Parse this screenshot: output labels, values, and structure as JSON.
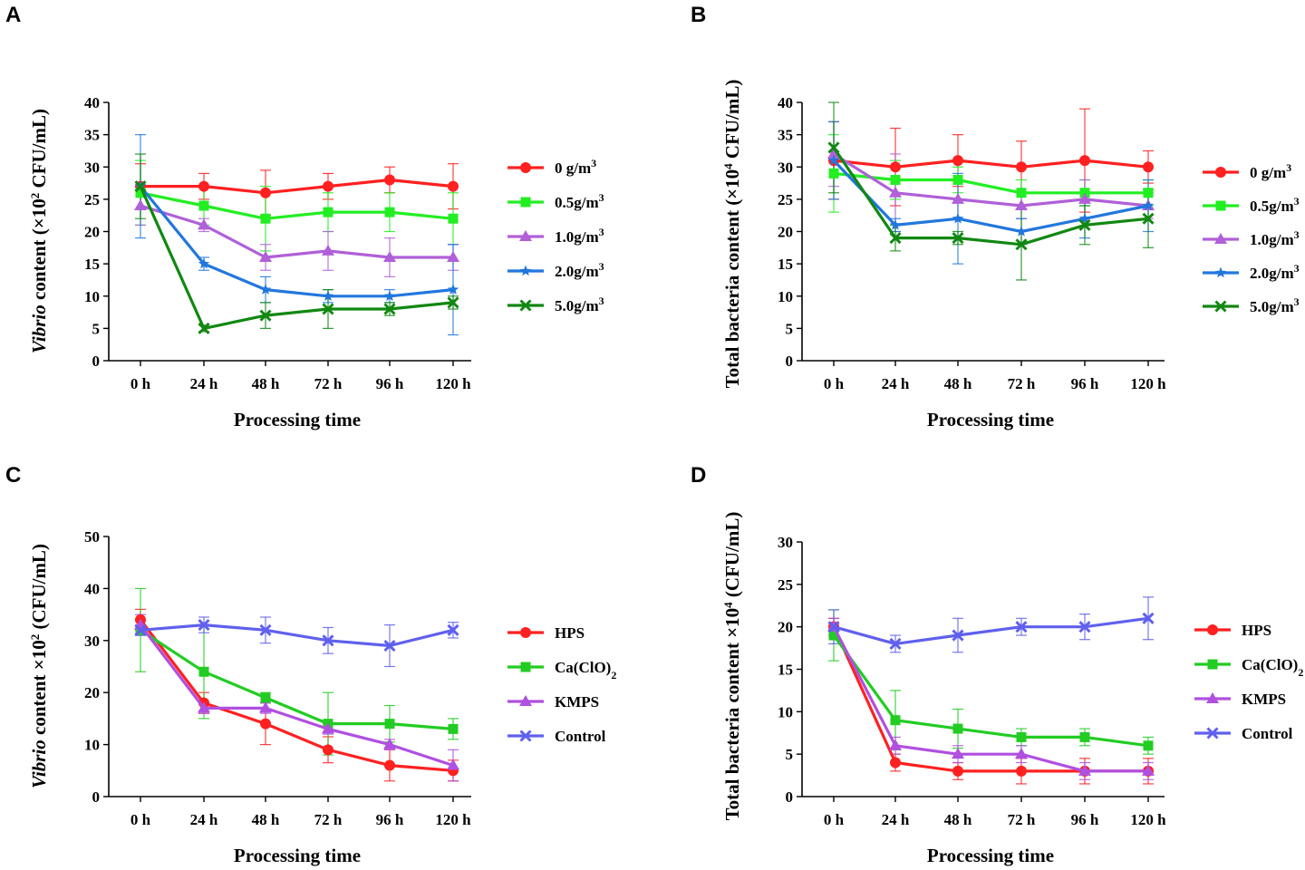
{
  "chart_data": [
    {
      "panel": "A",
      "type": "line",
      "categories": [
        "0 h",
        "24 h",
        "48 h",
        "72 h",
        "96 h",
        "120 h"
      ],
      "xlabel": "Processing time",
      "ylabel_parts": [
        {
          "text": "Vibrio",
          "italic": true
        },
        {
          "text": " content (×10"
        },
        {
          "text": "2",
          "sup": true
        },
        {
          "text": " CFU/mL)"
        }
      ],
      "ylim": [
        0,
        40
      ],
      "yticks": [
        0,
        5,
        10,
        15,
        20,
        25,
        30,
        35,
        40
      ],
      "series": [
        {
          "name": "0 g/m",
          "sup": "3",
          "color": "#ff2020",
          "marker": "circle",
          "values": [
            27,
            27,
            26,
            27,
            28,
            27
          ],
          "errors": [
            3.5,
            2,
            3.5,
            2,
            2,
            3.5
          ]
        },
        {
          "name": "0.5g/m",
          "sup": "3",
          "color": "#22ee22",
          "marker": "square",
          "values": [
            26,
            24,
            22,
            23,
            23,
            22
          ],
          "errors": [
            5,
            3,
            5,
            3,
            3,
            4
          ]
        },
        {
          "name": "1.0g/m",
          "sup": "3",
          "color": "#b060d8",
          "marker": "triangle",
          "values": [
            24,
            21,
            16,
            17,
            16,
            16
          ],
          "errors": [
            3,
            1,
            2,
            3,
            3,
            2
          ]
        },
        {
          "name": "2.0g/m",
          "sup": "3",
          "color": "#2277dd",
          "marker": "star",
          "values": [
            27,
            15,
            11,
            10,
            10,
            11
          ],
          "errors": [
            8,
            1,
            2,
            1,
            1,
            7
          ]
        },
        {
          "name": "5.0g/m",
          "sup": "3",
          "color": "#118811",
          "marker": "cross",
          "values": [
            27,
            5,
            7,
            8,
            8,
            9
          ],
          "errors": [
            5,
            0.5,
            2,
            3,
            1,
            1
          ]
        }
      ]
    },
    {
      "panel": "B",
      "type": "line",
      "categories": [
        "0 h",
        "24 h",
        "48 h",
        "72 h",
        "96 h",
        "120 h"
      ],
      "xlabel": "Processing time",
      "ylabel_parts": [
        {
          "text": "Total bacteria content  (×10"
        },
        {
          "text": "4",
          "sup": true
        },
        {
          "text": " CFU/mL)"
        }
      ],
      "ylim": [
        0,
        40
      ],
      "yticks": [
        0,
        5,
        10,
        15,
        20,
        25,
        30,
        35,
        40
      ],
      "series": [
        {
          "name": "0 g/m",
          "sup": "3",
          "color": "#ff2020",
          "marker": "circle",
          "values": [
            31,
            30,
            31,
            30,
            31,
            30
          ],
          "errors": [
            6,
            6,
            4,
            4,
            8,
            2.5
          ]
        },
        {
          "name": "0.5g/m",
          "sup": "3",
          "color": "#22ee22",
          "marker": "square",
          "values": [
            29,
            28,
            28,
            26,
            26,
            26
          ],
          "errors": [
            6,
            3,
            2,
            2,
            2,
            2
          ]
        },
        {
          "name": "1.0g/m",
          "sup": "3",
          "color": "#b060d8",
          "marker": "triangle",
          "values": [
            32,
            26,
            25,
            24,
            25,
            24
          ],
          "errors": [
            5,
            6,
            3,
            2,
            3,
            2
          ]
        },
        {
          "name": "2.0g/m",
          "sup": "3",
          "color": "#2277dd",
          "marker": "star",
          "values": [
            31,
            21,
            22,
            20,
            22,
            24
          ],
          "errors": [
            6,
            1,
            7,
            2,
            3,
            4
          ]
        },
        {
          "name": "5.0g/m",
          "sup": "3",
          "color": "#118811",
          "marker": "cross",
          "values": [
            33,
            19,
            19,
            18,
            21,
            22
          ],
          "errors": [
            7,
            2,
            1,
            5.5,
            3,
            4.5
          ]
        }
      ]
    },
    {
      "panel": "C",
      "type": "line",
      "categories": [
        "0 h",
        "24 h",
        "48 h",
        "72 h",
        "96 h",
        "120 h"
      ],
      "xlabel": "Processing time",
      "ylabel_parts": [
        {
          "text": "Vibrio",
          "italic": true
        },
        {
          "text": " content ×10"
        },
        {
          "text": "2",
          "sup": true
        },
        {
          "text": " (CFU/mL)"
        }
      ],
      "ylim": [
        0,
        50
      ],
      "yticks": [
        0,
        10,
        20,
        30,
        40,
        50
      ],
      "series": [
        {
          "name": "HPS",
          "color": "#ff2020",
          "marker": "circle",
          "values": [
            34,
            18,
            14,
            9,
            6,
            5
          ],
          "errors": [
            2,
            2,
            4,
            2.5,
            3,
            2
          ]
        },
        {
          "name": "Ca(ClO)",
          "sub": "2",
          "color": "#22cc22",
          "marker": "square",
          "values": [
            32,
            24,
            19,
            14,
            14,
            13
          ],
          "errors": [
            8,
            9,
            1,
            6,
            3.5,
            2
          ]
        },
        {
          "name": "KMPS",
          "color": "#b050e0",
          "marker": "triangle",
          "values": [
            33,
            17,
            17,
            13,
            10,
            6
          ],
          "errors": [
            2,
            1,
            1,
            1,
            1,
            3
          ]
        },
        {
          "name": "Control",
          "color": "#6060ee",
          "marker": "cross",
          "values": [
            32,
            33,
            32,
            30,
            29,
            32
          ],
          "errors": [
            1,
            1.5,
            2.5,
            2.5,
            4,
            1.5
          ]
        }
      ]
    },
    {
      "panel": "D",
      "type": "line",
      "categories": [
        "0 h",
        "24 h",
        "48 h",
        "72 h",
        "96 h",
        "120 h"
      ],
      "xlabel": "Processing time",
      "ylabel_parts": [
        {
          "text": "Total bacteria content ×10"
        },
        {
          "text": "4",
          "sup": true
        },
        {
          "text": " (CFU/mL)"
        }
      ],
      "ylim": [
        0,
        30
      ],
      "yticks": [
        0,
        5,
        10,
        15,
        20,
        25,
        30
      ],
      "series": [
        {
          "name": "HPS",
          "color": "#ff2020",
          "marker": "circle",
          "values": [
            20,
            4,
            3,
            3,
            3,
            3
          ],
          "errors": [
            1,
            1,
            1,
            1.5,
            1.5,
            1.5
          ]
        },
        {
          "name": "Ca(ClO)",
          "sub": "2",
          "color": "#22cc22",
          "marker": "square",
          "values": [
            19,
            9,
            8,
            7,
            7,
            6
          ],
          "errors": [
            3,
            3.5,
            2.3,
            1,
            1,
            1
          ]
        },
        {
          "name": "KMPS",
          "color": "#b050e0",
          "marker": "triangle",
          "values": [
            20,
            6,
            5,
            5,
            3,
            3
          ],
          "errors": [
            1,
            1,
            1,
            1,
            1,
            1
          ]
        },
        {
          "name": "Control",
          "color": "#6060ee",
          "marker": "cross",
          "values": [
            20,
            18,
            19,
            20,
            20,
            21
          ],
          "errors": [
            2,
            1,
            2,
            1,
            1.5,
            2.5
          ]
        }
      ]
    }
  ]
}
